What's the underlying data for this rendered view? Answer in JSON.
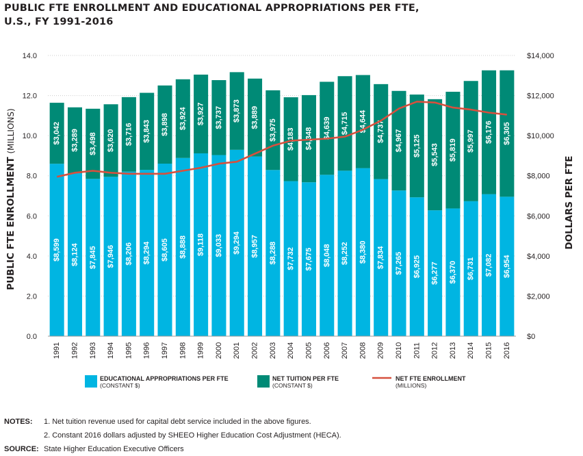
{
  "title_line1": "PUBLIC FTE ENROLLMENT AND EDUCATIONAL APPROPRIATIONS PER FTE,",
  "title_line2": "U.S., FY 1991-2016",
  "colors": {
    "appropriations": "#00b5e2",
    "tuition": "#008a76",
    "enrollment": "#d6503e",
    "grid": "#cccccc",
    "text": "#231f20"
  },
  "chart_data": {
    "type": "bar",
    "stacked": true,
    "title": "PUBLIC FTE ENROLLMENT AND EDUCATIONAL APPROPRIATIONS PER FTE, U.S., FY 1991-2016",
    "categories": [
      "1991",
      "1992",
      "1993",
      "1994",
      "1995",
      "1996",
      "1997",
      "1998",
      "1999",
      "2000",
      "2001",
      "2002",
      "2003",
      "2004",
      "2005",
      "2006",
      "2007",
      "2008",
      "2009",
      "2010",
      "2011",
      "2012",
      "2013",
      "2014",
      "2015",
      "2016"
    ],
    "series": [
      {
        "name": "EDUCATIONAL APPROPRIATIONS PER FTE",
        "sub": "(CONSTANT $)",
        "axis": "right",
        "values": [
          8599,
          8124,
          7845,
          7946,
          8206,
          8294,
          8605,
          8888,
          9118,
          9033,
          9294,
          8957,
          8288,
          7732,
          7675,
          8048,
          8252,
          8380,
          7834,
          7265,
          6925,
          6277,
          6370,
          6731,
          7082,
          6954
        ],
        "labels": [
          "$8,599",
          "$8,124",
          "$7,845",
          "$7,946",
          "$8,206",
          "$8,294",
          "$8,605",
          "$8,888",
          "$9,118",
          "$9,033",
          "$9,294",
          "$8,957",
          "$8,288",
          "$7,732",
          "$7,675",
          "$8,048",
          "$8,252",
          "$8,380",
          "$7,834",
          "$7,265",
          "$6,925",
          "$6,277",
          "$6,370",
          "$6,731",
          "$7,082",
          "$6,954"
        ]
      },
      {
        "name": "NET TUITION PER FTE",
        "sub": "(CONSTANT $)",
        "axis": "right",
        "values": [
          3042,
          3289,
          3498,
          3620,
          3716,
          3843,
          3898,
          3924,
          3927,
          3737,
          3873,
          3889,
          3975,
          4183,
          4348,
          4639,
          4715,
          4644,
          4737,
          4967,
          5125,
          5543,
          5819,
          5997,
          6176,
          6305
        ],
        "labels": [
          "$3,042",
          "$3,289",
          "$3,498",
          "$3,620",
          "$3,716",
          "$3,843",
          "$3,898",
          "$3,924",
          "$3,927",
          "$3,737",
          "$3,873",
          "$3,889",
          "$3,975",
          "$4,183",
          "$4,348",
          "$4,639",
          "$4,715",
          "$4,644",
          "$4,737",
          "$4,967",
          "$5,125",
          "$5,543",
          "$5,819",
          "$5,997",
          "$6,176",
          "$6,305"
        ]
      },
      {
        "name": "NET FTE ENROLLMENT",
        "sub": "(MILLIONS)",
        "axis": "left",
        "type": "line",
        "values": [
          7.95,
          8.15,
          8.25,
          8.15,
          8.1,
          8.1,
          8.1,
          8.25,
          8.4,
          8.6,
          8.7,
          9.1,
          9.5,
          9.75,
          9.8,
          9.85,
          9.95,
          10.3,
          10.75,
          11.35,
          11.7,
          11.65,
          11.4,
          11.3,
          11.15,
          11.05
        ]
      }
    ],
    "ylabel_left": "PUBLIC FTE ENROLLMENT",
    "ylabel_left_unit": "(MILLIONS)",
    "ylabel_right": "DOLLARS PER FTE",
    "ylim_left": [
      0,
      14
    ],
    "ylim_right": [
      0,
      14000
    ],
    "left_ticks": [
      "0.0",
      "2.0",
      "4.0",
      "6.0",
      "8.0",
      "10.0",
      "12.0",
      "14.0"
    ],
    "right_ticks": [
      "$0",
      "$2,000",
      "$4,000",
      "$6,000",
      "$8,000",
      "$10,000",
      "$12,000",
      "$14,000"
    ],
    "grid": true,
    "legend_position": "bottom"
  },
  "notes_label": "NOTES:",
  "note1": "1. Net tuition revenue used for capital debt service included in the above figures.",
  "note2": "2. Constant 2016 dollars adjusted by SHEEO Higher Education Cost Adjustment (HECA).",
  "source_label": "SOURCE:",
  "source_text": "State Higher Education Executive Officers"
}
